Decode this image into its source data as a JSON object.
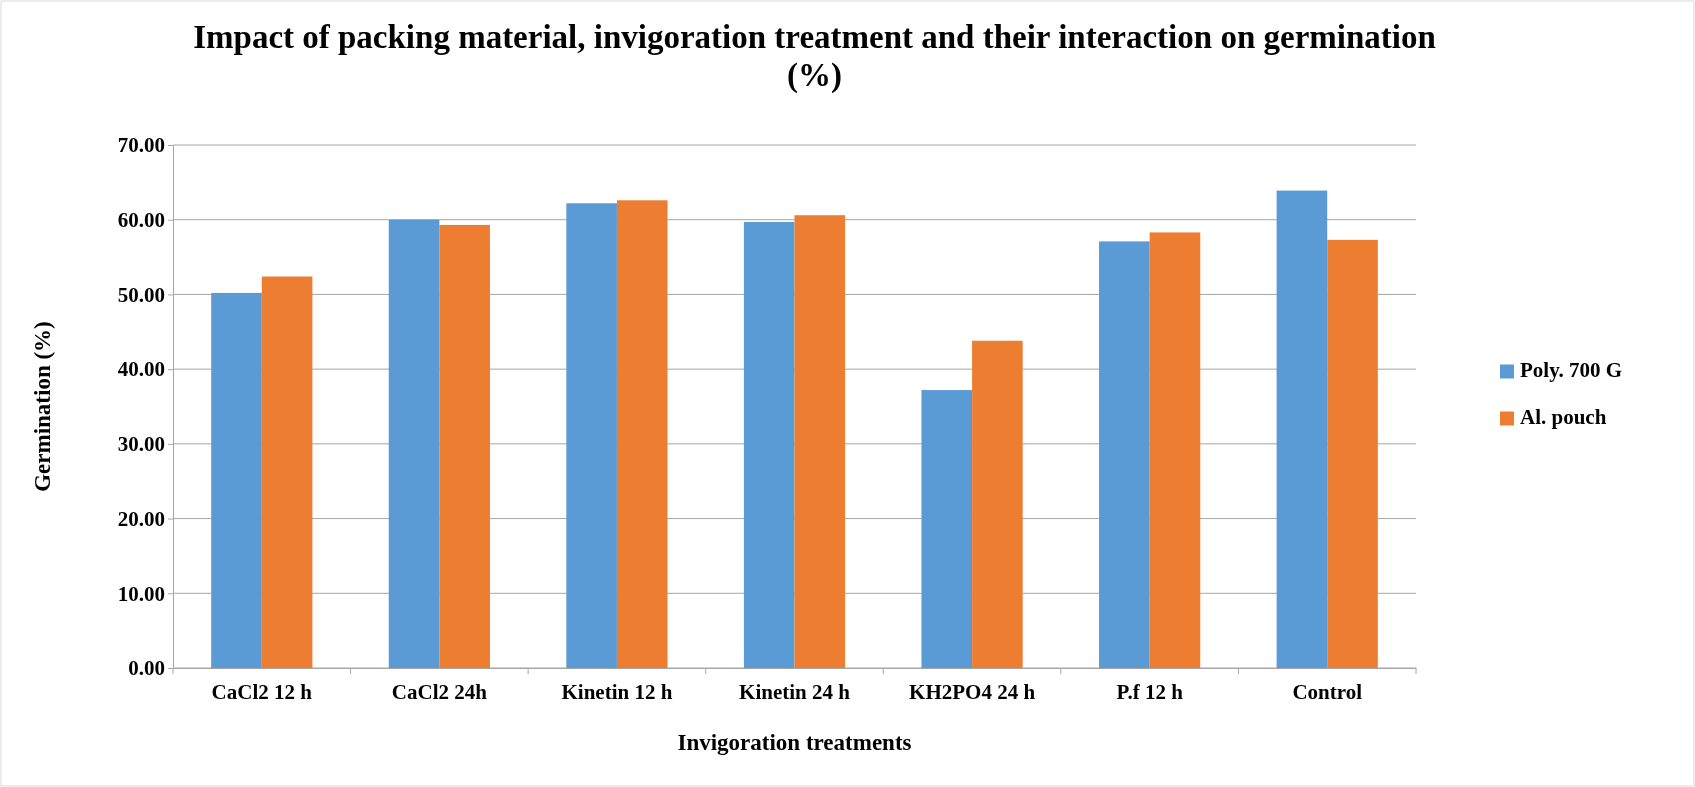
{
  "chart_data": {
    "type": "bar",
    "title": "Impact of packing material, invigoration treatment and their interaction on germination (%)",
    "xlabel": "Invigoration treatments",
    "ylabel": "Germination (%)",
    "categories": [
      "CaCl2 12 h",
      "CaCl2 24h",
      "Kinetin 12 h",
      "Kinetin 24 h",
      "KH2PO4 24 h",
      "P.f 12 h",
      "Control"
    ],
    "series": [
      {
        "name": "Poly. 700 G",
        "color": "#5b9bd5",
        "values": [
          50.2,
          60.0,
          62.2,
          59.7,
          37.2,
          57.1,
          63.9
        ]
      },
      {
        "name": "Al. pouch",
        "color": "#ed7d31",
        "values": [
          52.4,
          59.3,
          62.6,
          60.6,
          43.8,
          58.3,
          57.3
        ]
      }
    ],
    "ylim": [
      0,
      70
    ],
    "yticks": [
      {
        "value": 0,
        "label": "0.00"
      },
      {
        "value": 10,
        "label": "10.00"
      },
      {
        "value": 20,
        "label": "20.00"
      },
      {
        "value": 30,
        "label": "30.00"
      },
      {
        "value": 40,
        "label": "40.00"
      },
      {
        "value": 50,
        "label": "50.00"
      },
      {
        "value": 60,
        "label": "60.00"
      },
      {
        "value": 70,
        "label": "70.00"
      }
    ],
    "grid": "y",
    "legend": "right"
  }
}
